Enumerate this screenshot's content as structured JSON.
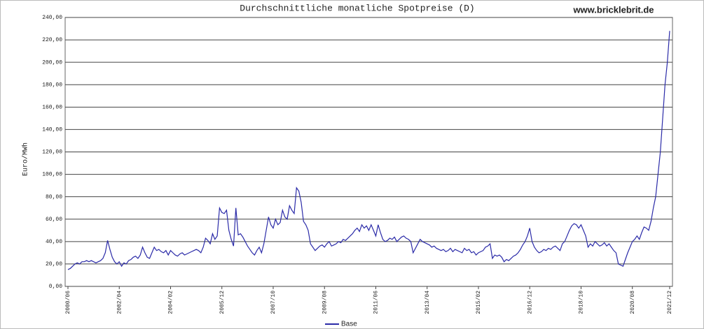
{
  "chart_data": {
    "type": "line",
    "title": "Durchschnittliche monatliche Spotpreise (D)",
    "watermark": "www.bricklebrit.de",
    "y_label": "Euro/MWh",
    "categories": [
      "2000/06",
      null,
      null,
      null,
      null,
      null,
      null,
      null,
      null,
      null,
      null,
      null,
      null,
      null,
      null,
      null,
      null,
      null,
      null,
      null,
      null,
      null,
      "2002/04",
      null,
      null,
      null,
      null,
      null,
      null,
      null,
      null,
      null,
      null,
      null,
      null,
      null,
      null,
      null,
      null,
      null,
      null,
      null,
      null,
      null,
      "2004/02",
      null,
      null,
      null,
      null,
      null,
      null,
      null,
      null,
      null,
      null,
      null,
      null,
      null,
      null,
      null,
      null,
      null,
      null,
      null,
      null,
      null,
      "2005/12",
      null,
      null,
      null,
      null,
      null,
      null,
      null,
      null,
      null,
      null,
      null,
      null,
      null,
      null,
      null,
      null,
      null,
      null,
      null,
      null,
      null,
      "2007/10",
      null,
      null,
      null,
      null,
      null,
      null,
      null,
      null,
      null,
      null,
      null,
      null,
      null,
      null,
      null,
      null,
      null,
      null,
      null,
      null,
      null,
      "2009/08",
      null,
      null,
      null,
      null,
      null,
      null,
      null,
      null,
      null,
      null,
      null,
      null,
      null,
      null,
      null,
      null,
      null,
      null,
      null,
      null,
      null,
      "2011/06",
      null,
      null,
      null,
      null,
      null,
      null,
      null,
      null,
      null,
      null,
      null,
      null,
      null,
      null,
      null,
      null,
      null,
      null,
      null,
      null,
      null,
      "2013/04",
      null,
      null,
      null,
      null,
      null,
      null,
      null,
      null,
      null,
      null,
      null,
      null,
      null,
      null,
      null,
      null,
      null,
      null,
      null,
      null,
      null,
      "2015/02",
      null,
      null,
      null,
      null,
      null,
      null,
      null,
      null,
      null,
      null,
      null,
      null,
      null,
      null,
      null,
      null,
      null,
      null,
      null,
      null,
      null,
      "2016/12",
      null,
      null,
      null,
      null,
      null,
      null,
      null,
      null,
      null,
      null,
      null,
      null,
      null,
      null,
      null,
      null,
      null,
      null,
      null,
      null,
      null,
      "2018/10",
      null,
      null,
      null,
      null,
      null,
      null,
      null,
      null,
      null,
      null,
      null,
      null,
      null,
      null,
      null,
      null,
      null,
      null,
      null,
      null,
      null,
      "2020/08",
      null,
      null,
      null,
      null,
      null,
      null,
      null,
      null,
      null,
      null,
      null,
      null,
      null,
      null,
      null,
      "2021/12"
    ],
    "series": [
      {
        "name": "Base",
        "color": "#2b2ba8",
        "values": [
          15,
          16,
          18,
          20,
          21,
          20,
          22,
          22,
          23,
          22,
          23,
          22,
          21,
          22,
          23,
          25,
          30,
          41,
          33,
          26,
          22,
          20,
          22,
          18,
          21,
          20,
          23,
          24,
          26,
          27,
          25,
          28,
          35,
          30,
          26,
          25,
          30,
          35,
          32,
          33,
          31,
          30,
          32,
          28,
          32,
          30,
          28,
          27,
          29,
          30,
          28,
          29,
          30,
          31,
          32,
          33,
          32,
          30,
          35,
          43,
          41,
          38,
          47,
          42,
          45,
          70,
          66,
          65,
          68,
          50,
          42,
          36,
          70,
          46,
          47,
          44,
          40,
          36,
          33,
          30,
          28,
          32,
          35,
          30,
          38,
          50,
          62,
          55,
          52,
          60,
          55,
          57,
          68,
          62,
          60,
          72,
          68,
          65,
          88,
          85,
          75,
          58,
          55,
          50,
          38,
          35,
          32,
          34,
          36,
          37,
          35,
          38,
          40,
          36,
          37,
          38,
          40,
          39,
          42,
          41,
          43,
          45,
          47,
          50,
          52,
          49,
          55,
          52,
          54,
          50,
          55,
          50,
          45,
          55,
          48,
          42,
          40,
          41,
          43,
          42,
          44,
          40,
          42,
          44,
          45,
          43,
          42,
          40,
          30,
          34,
          38,
          42,
          40,
          39,
          38,
          37,
          35,
          36,
          34,
          33,
          32,
          33,
          31,
          32,
          34,
          31,
          33,
          32,
          31,
          30,
          34,
          32,
          33,
          30,
          31,
          28,
          30,
          31,
          32,
          35,
          36,
          38,
          25,
          28,
          27,
          28,
          26,
          22,
          24,
          23,
          25,
          27,
          28,
          30,
          33,
          37,
          40,
          45,
          52,
          40,
          35,
          32,
          30,
          31,
          33,
          32,
          34,
          33,
          35,
          36,
          34,
          32,
          38,
          40,
          45,
          50,
          54,
          56,
          55,
          52,
          55,
          50,
          45,
          35,
          38,
          36,
          40,
          38,
          36,
          37,
          39,
          36,
          38,
          35,
          32,
          30,
          20,
          19,
          18,
          24,
          30,
          35,
          40,
          42,
          45,
          42,
          48,
          53,
          52,
          50,
          58,
          70,
          80,
          100,
          120,
          150,
          180,
          200,
          228
        ]
      }
    ],
    "ylim": [
      0,
      240
    ],
    "yticks": [
      {
        "value": 0,
        "label": "0,00"
      },
      {
        "value": 20,
        "label": "20,00"
      },
      {
        "value": 40,
        "label": "40,00"
      },
      {
        "value": 60,
        "label": "60,00"
      },
      {
        "value": 80,
        "label": "80,00"
      },
      {
        "value": 100,
        "label": "100,00"
      },
      {
        "value": 120,
        "label": "120,00"
      },
      {
        "value": 140,
        "label": "140,00"
      },
      {
        "value": 160,
        "label": "160,00"
      },
      {
        "value": 180,
        "label": "180,00"
      },
      {
        "value": 200,
        "label": "200,00"
      },
      {
        "value": 220,
        "label": "220,00"
      },
      {
        "value": 240,
        "label": "240,00"
      }
    ],
    "grid": true
  }
}
